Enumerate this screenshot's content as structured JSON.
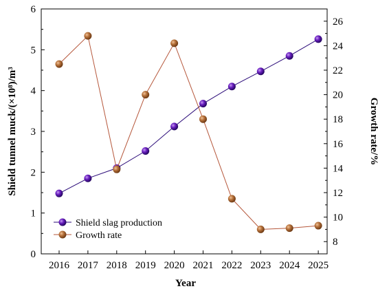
{
  "chart_data": {
    "type": "line",
    "x": [
      2016,
      2017,
      2018,
      2019,
      2020,
      2021,
      2022,
      2023,
      2024,
      2025
    ],
    "xlabel": "Year",
    "ylabel_left": "Shield tunnel muck/(×10⁸)/m³",
    "ylabel_right": "Growth rate/%",
    "ylim_left": [
      0,
      6
    ],
    "ylim_right": [
      7,
      27
    ],
    "yticks_left": [
      0,
      1,
      2,
      3,
      4,
      5,
      6
    ],
    "yticks_right": [
      8,
      10,
      12,
      14,
      16,
      18,
      20,
      22,
      24,
      26
    ],
    "legend_position": "bottom-left",
    "grid": false,
    "series": [
      {
        "name": "Shield slag production",
        "axis": "left",
        "color": "#2a0a78",
        "marker_color": "#6a1fc0",
        "values": [
          1.48,
          1.85,
          2.1,
          2.52,
          3.12,
          3.68,
          4.1,
          4.47,
          4.85,
          5.26
        ]
      },
      {
        "name": "Growth rate",
        "axis": "right",
        "color": "#b5563a",
        "marker_color": "#b8733c",
        "values": [
          22.5,
          24.8,
          13.9,
          20.0,
          24.2,
          18.0,
          11.5,
          9.0,
          9.1,
          9.3
        ]
      }
    ]
  }
}
